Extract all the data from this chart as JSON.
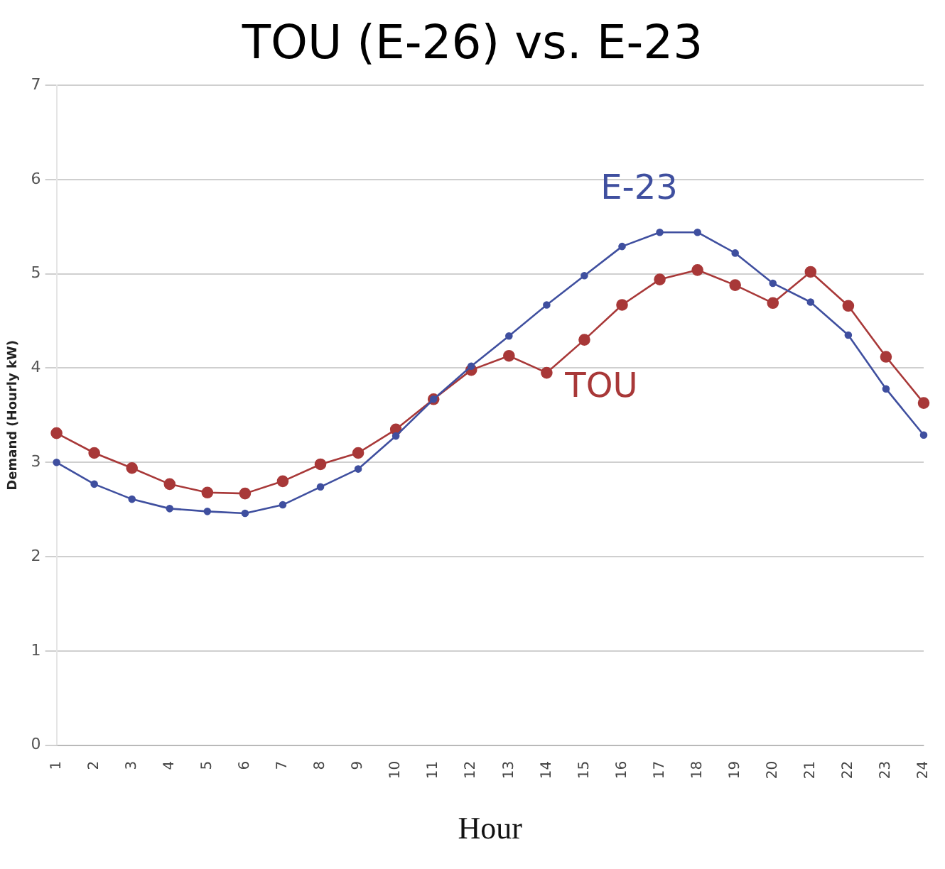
{
  "chart_data": {
    "type": "line",
    "title": "TOU (E-26) vs. E-23",
    "xlabel": "Hour",
    "ylabel": "Demand (Hourly kW)",
    "categories": [
      "1",
      "2",
      "3",
      "4",
      "5",
      "6",
      "7",
      "8",
      "9",
      "10",
      "11",
      "12",
      "13",
      "14",
      "15",
      "16",
      "17",
      "18",
      "19",
      "20",
      "21",
      "22",
      "23",
      "24"
    ],
    "series": [
      {
        "name": "E-23",
        "color": "#3f4f9f",
        "values": [
          3.0,
          2.77,
          2.61,
          2.51,
          2.48,
          2.46,
          2.55,
          2.74,
          2.93,
          3.28,
          3.67,
          4.02,
          4.34,
          4.67,
          4.98,
          5.29,
          5.44,
          5.44,
          5.22,
          4.9,
          4.7,
          4.35,
          3.78,
          3.29
        ]
      },
      {
        "name": "TOU",
        "color": "#a83838",
        "values": [
          3.31,
          3.1,
          2.94,
          2.77,
          2.68,
          2.67,
          2.8,
          2.98,
          3.1,
          3.35,
          3.67,
          3.98,
          4.13,
          3.95,
          4.3,
          4.67,
          4.94,
          5.04,
          4.88,
          4.69,
          5.02,
          4.66,
          4.12,
          3.63
        ]
      }
    ],
    "ylim": [
      0,
      7
    ],
    "yticks": [
      0,
      1,
      2,
      3,
      4,
      5,
      6,
      7
    ],
    "grid": "y",
    "legend": false,
    "marker": "circle",
    "line_style": "solid"
  }
}
